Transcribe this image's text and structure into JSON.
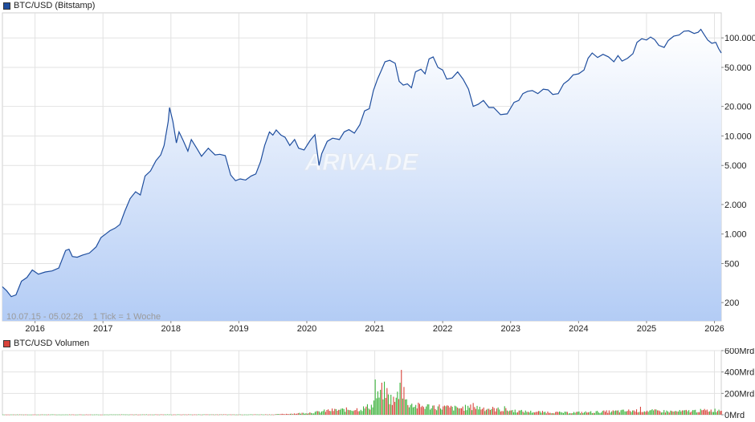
{
  "price_legend": {
    "label": "BTC/USD (Bitstamp)",
    "color": "#1f4e9e"
  },
  "volume_legend": {
    "label": "BTC/USD Volumen",
    "color": "#d9443b"
  },
  "info_text": "10.07.15 - 05.02.26    1 Tick = 1 Woche",
  "watermark": "ARIVA.DE",
  "chart_data": [
    {
      "type": "area",
      "name": "BTC/USD (Bitstamp)",
      "yscale": "log",
      "ylim": [
        130,
        180000
      ],
      "xlim": [
        2015.52,
        2026.1
      ],
      "x_tick_labels": [
        "2016",
        "2017",
        "2018",
        "2019",
        "2020",
        "2021",
        "2022",
        "2023",
        "2024",
        "2025",
        "2026"
      ],
      "x_ticks": [
        2016,
        2017,
        2018,
        2019,
        2020,
        2021,
        2022,
        2023,
        2024,
        2025,
        2026
      ],
      "y_tick_labels": [
        "100.000",
        "50.000",
        "20.000",
        "10.000",
        "5.000",
        "2.000",
        "1.000",
        "500",
        "200"
      ],
      "y_ticks": [
        100000,
        50000,
        20000,
        10000,
        5000,
        2000,
        1000,
        500,
        200
      ],
      "grid": true,
      "line_color": "#1f4e9e",
      "points": [
        [
          2015.52,
          290
        ],
        [
          2015.58,
          265
        ],
        [
          2015.65,
          230
        ],
        [
          2015.72,
          240
        ],
        [
          2015.8,
          330
        ],
        [
          2015.88,
          360
        ],
        [
          2015.96,
          430
        ],
        [
          2016.05,
          390
        ],
        [
          2016.15,
          410
        ],
        [
          2016.25,
          420
        ],
        [
          2016.35,
          450
        ],
        [
          2016.45,
          680
        ],
        [
          2016.5,
          700
        ],
        [
          2016.55,
          590
        ],
        [
          2016.62,
          580
        ],
        [
          2016.7,
          610
        ],
        [
          2016.8,
          640
        ],
        [
          2016.9,
          740
        ],
        [
          2016.97,
          920
        ],
        [
          2017.04,
          1000
        ],
        [
          2017.1,
          1080
        ],
        [
          2017.18,
          1150
        ],
        [
          2017.25,
          1250
        ],
        [
          2017.32,
          1700
        ],
        [
          2017.4,
          2300
        ],
        [
          2017.48,
          2700
        ],
        [
          2017.55,
          2500
        ],
        [
          2017.62,
          3900
        ],
        [
          2017.7,
          4400
        ],
        [
          2017.78,
          5600
        ],
        [
          2017.85,
          6400
        ],
        [
          2017.9,
          8000
        ],
        [
          2017.96,
          14000
        ],
        [
          2017.98,
          19500
        ],
        [
          2018.03,
          14000
        ],
        [
          2018.08,
          8500
        ],
        [
          2018.12,
          11000
        ],
        [
          2018.18,
          9000
        ],
        [
          2018.25,
          7000
        ],
        [
          2018.3,
          9200
        ],
        [
          2018.38,
          7500
        ],
        [
          2018.45,
          6200
        ],
        [
          2018.55,
          7500
        ],
        [
          2018.65,
          6400
        ],
        [
          2018.72,
          6500
        ],
        [
          2018.8,
          6300
        ],
        [
          2018.88,
          4000
        ],
        [
          2018.95,
          3500
        ],
        [
          2019.02,
          3650
        ],
        [
          2019.1,
          3550
        ],
        [
          2019.18,
          3900
        ],
        [
          2019.25,
          4100
        ],
        [
          2019.32,
          5500
        ],
        [
          2019.38,
          8000
        ],
        [
          2019.45,
          11000
        ],
        [
          2019.5,
          10200
        ],
        [
          2019.55,
          11500
        ],
        [
          2019.62,
          10200
        ],
        [
          2019.68,
          9700
        ],
        [
          2019.75,
          8000
        ],
        [
          2019.82,
          9200
        ],
        [
          2019.88,
          7500
        ],
        [
          2019.96,
          7200
        ],
        [
          2020.05,
          9000
        ],
        [
          2020.12,
          10300
        ],
        [
          2020.18,
          5000
        ],
        [
          2020.22,
          6600
        ],
        [
          2020.3,
          8800
        ],
        [
          2020.38,
          9500
        ],
        [
          2020.48,
          9200
        ],
        [
          2020.55,
          11000
        ],
        [
          2020.62,
          11600
        ],
        [
          2020.7,
          10700
        ],
        [
          2020.78,
          13000
        ],
        [
          2020.85,
          18000
        ],
        [
          2020.92,
          19000
        ],
        [
          2020.98,
          29000
        ],
        [
          2021.04,
          38000
        ],
        [
          2021.1,
          47000
        ],
        [
          2021.15,
          57000
        ],
        [
          2021.22,
          59000
        ],
        [
          2021.3,
          55000
        ],
        [
          2021.36,
          36000
        ],
        [
          2021.42,
          33000
        ],
        [
          2021.48,
          34000
        ],
        [
          2021.54,
          31000
        ],
        [
          2021.6,
          45000
        ],
        [
          2021.68,
          48000
        ],
        [
          2021.74,
          43000
        ],
        [
          2021.8,
          61000
        ],
        [
          2021.86,
          64000
        ],
        [
          2021.93,
          50000
        ],
        [
          2022.0,
          47000
        ],
        [
          2022.06,
          38000
        ],
        [
          2022.14,
          39000
        ],
        [
          2022.22,
          45000
        ],
        [
          2022.3,
          38000
        ],
        [
          2022.38,
          30000
        ],
        [
          2022.45,
          20000
        ],
        [
          2022.52,
          21000
        ],
        [
          2022.6,
          23000
        ],
        [
          2022.68,
          19500
        ],
        [
          2022.75,
          19500
        ],
        [
          2022.85,
          16500
        ],
        [
          2022.95,
          16800
        ],
        [
          2023.05,
          22000
        ],
        [
          2023.12,
          23000
        ],
        [
          2023.18,
          27000
        ],
        [
          2023.25,
          28500
        ],
        [
          2023.32,
          29000
        ],
        [
          2023.4,
          27000
        ],
        [
          2023.48,
          30000
        ],
        [
          2023.55,
          29500
        ],
        [
          2023.62,
          26500
        ],
        [
          2023.7,
          27000
        ],
        [
          2023.78,
          34000
        ],
        [
          2023.85,
          37000
        ],
        [
          2023.92,
          42000
        ],
        [
          2024.0,
          43000
        ],
        [
          2024.08,
          47000
        ],
        [
          2024.14,
          62000
        ],
        [
          2024.2,
          70000
        ],
        [
          2024.28,
          63000
        ],
        [
          2024.36,
          68000
        ],
        [
          2024.44,
          64000
        ],
        [
          2024.52,
          57000
        ],
        [
          2024.58,
          66000
        ],
        [
          2024.64,
          58000
        ],
        [
          2024.72,
          62000
        ],
        [
          2024.8,
          69000
        ],
        [
          2024.86,
          90000
        ],
        [
          2024.93,
          98000
        ],
        [
          2025.0,
          95000
        ],
        [
          2025.06,
          102000
        ],
        [
          2025.12,
          96000
        ],
        [
          2025.18,
          84000
        ],
        [
          2025.26,
          80000
        ],
        [
          2025.32,
          94000
        ],
        [
          2025.4,
          104000
        ],
        [
          2025.48,
          107000
        ],
        [
          2025.55,
          117000
        ],
        [
          2025.62,
          118000
        ],
        [
          2025.7,
          111000
        ],
        [
          2025.76,
          114000
        ],
        [
          2025.8,
          122000
        ],
        [
          2025.84,
          110000
        ],
        [
          2025.9,
          95000
        ],
        [
          2025.96,
          88000
        ],
        [
          2026.02,
          90000
        ],
        [
          2026.06,
          78000
        ],
        [
          2026.1,
          70000
        ]
      ]
    },
    {
      "type": "bar",
      "name": "BTC/USD Volumen",
      "unit": "Mrd",
      "ylim": [
        0,
        600
      ],
      "y_tick_labels": [
        "600Mrd",
        "400Mrd",
        "200Mrd",
        "0Mrd"
      ],
      "y_ticks": [
        600,
        400,
        200,
        0
      ],
      "colors": {
        "up": "#3cb43c",
        "down": "#d9443b"
      },
      "anchors": [
        [
          2015.52,
          2
        ],
        [
          2019.5,
          3
        ],
        [
          2019.9,
          14
        ],
        [
          2020.15,
          25
        ],
        [
          2020.3,
          40
        ],
        [
          2020.5,
          45
        ],
        [
          2020.8,
          55
        ],
        [
          2020.95,
          85
        ],
        [
          2021.05,
          170
        ],
        [
          2021.12,
          230
        ],
        [
          2021.2,
          160
        ],
        [
          2021.3,
          120
        ],
        [
          2021.38,
          290
        ],
        [
          2021.45,
          120
        ],
        [
          2021.6,
          80
        ],
        [
          2021.9,
          75
        ],
        [
          2022.2,
          60
        ],
        [
          2022.45,
          70
        ],
        [
          2022.8,
          50
        ],
        [
          2023.2,
          30
        ],
        [
          2023.8,
          20
        ],
        [
          2024.2,
          25
        ],
        [
          2024.9,
          40
        ],
        [
          2025.4,
          30
        ],
        [
          2026.1,
          45
        ]
      ],
      "peaks": [
        [
          2021.0,
          330
        ],
        [
          2021.1,
          300
        ],
        [
          2021.38,
          420
        ],
        [
          2021.42,
          260
        ],
        [
          2021.18,
          250
        ],
        [
          2022.45,
          110
        ],
        [
          2022.9,
          80
        ],
        [
          2024.9,
          75
        ]
      ]
    }
  ]
}
